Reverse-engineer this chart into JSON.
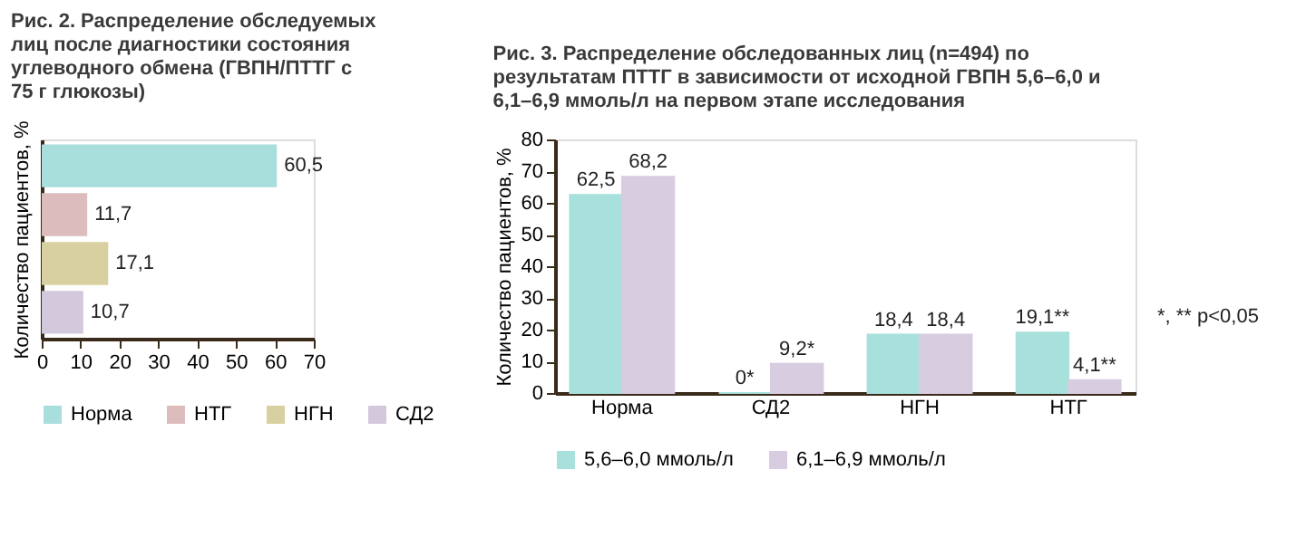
{
  "chart_data": [
    {
      "type": "bar",
      "orientation": "horizontal",
      "stacked": true,
      "title": "Рис. 2. Распределение обследуемых лиц после диагностики состояния углеводного обмена (ГВПН/ПТТГ с 75 г глюкозы)",
      "ylabel": "Количество пациентов, %",
      "categories": [
        null,
        null,
        null,
        null
      ],
      "series": [
        {
          "name": "Норма",
          "color": "#a8dedc",
          "values": [
            60.5,
            null,
            null,
            null
          ],
          "value_labels": [
            "60,5",
            null,
            null,
            null
          ]
        },
        {
          "name": "НТГ",
          "color": "#dcbcbc",
          "values": [
            null,
            11.7,
            null,
            null
          ],
          "value_labels": [
            null,
            "11,7",
            null,
            null
          ]
        },
        {
          "name": "НГН",
          "color": "#d8d0a0",
          "values": [
            null,
            null,
            17.1,
            null
          ],
          "value_labels": [
            null,
            null,
            "17,1",
            null
          ]
        },
        {
          "name": "СД2",
          "color": "#d4c8dc",
          "values": [
            null,
            null,
            null,
            10.7
          ],
          "value_labels": [
            null,
            null,
            null,
            "10,7"
          ]
        }
      ],
      "xlim": [
        0,
        70
      ],
      "xticks": [
        0,
        10,
        20,
        30,
        40,
        50,
        60,
        70
      ],
      "legend": "bottom",
      "grid": false
    },
    {
      "type": "bar",
      "title": "Рис. 3. Распределение обследованных лиц (n=494) по результатам ПТТГ в зависимости от исходной ГВПН 5,6–6,0 и 6,1–6,9 ммоль/л на первом этапе исследования",
      "ylabel": "Количество пациентов, %",
      "categories": [
        "Норма",
        "СД2",
        "НГН",
        "НТГ"
      ],
      "series": [
        {
          "name": "5,6–6,0 ммоль/л",
          "color": "#a8e0dc",
          "values": [
            62.5,
            0,
            18.4,
            19.1
          ],
          "value_labels": [
            "62,5",
            "0*",
            "18,4",
            "19,1**"
          ]
        },
        {
          "name": "6,1–6,9 ммоль/л",
          "color": "#d8cce0",
          "values": [
            68.2,
            9.2,
            18.4,
            4.1
          ],
          "value_labels": [
            "68,2",
            "9,2*",
            "18,4",
            "4,1**"
          ]
        }
      ],
      "ylim": [
        0,
        80
      ],
      "yticks": [
        0,
        10,
        20,
        30,
        40,
        50,
        60,
        70,
        80
      ],
      "legend": "bottom",
      "grid": false,
      "annotations": [
        "*, ** p<0,05"
      ]
    }
  ]
}
